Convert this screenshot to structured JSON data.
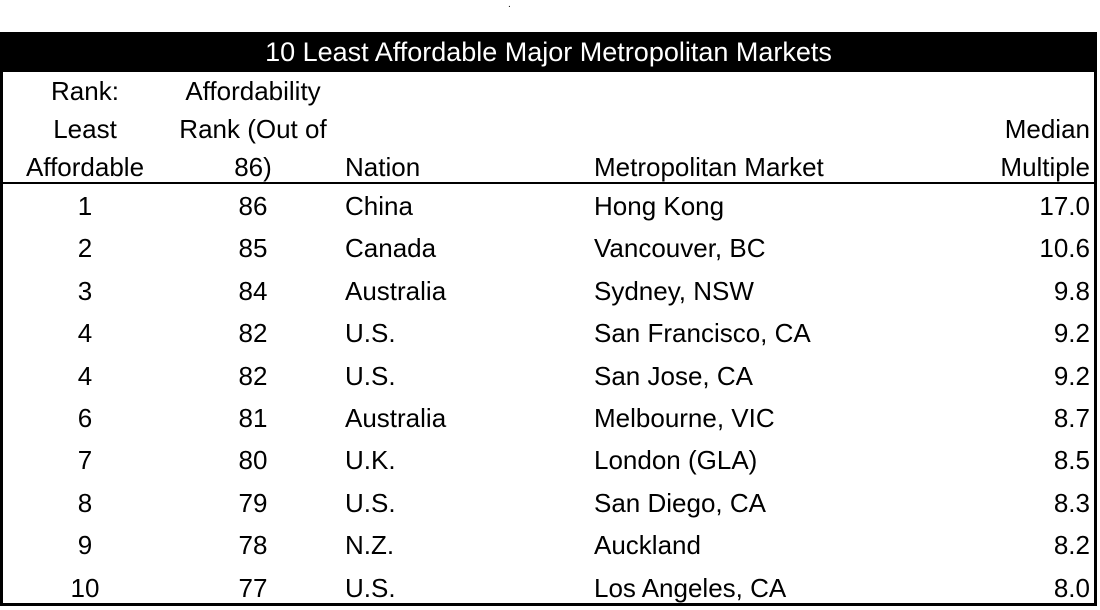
{
  "title": "10 Least Affordable Major Metropolitan Markets",
  "top_mark": ".",
  "headers": {
    "rank": [
      "Rank:",
      "Least",
      "Affordable"
    ],
    "affordability_rank": [
      "Affordability",
      "Rank (Out of",
      "86)"
    ],
    "nation": "Nation",
    "market": "Metropolitan Market",
    "median_multiple": [
      "Median",
      "Multiple"
    ]
  },
  "rows": [
    {
      "rank": "1",
      "afford": "86",
      "nation": "China",
      "market": "Hong Kong",
      "multiple": "17.0"
    },
    {
      "rank": "2",
      "afford": "85",
      "nation": "Canada",
      "market": "Vancouver, BC",
      "multiple": "10.6"
    },
    {
      "rank": "3",
      "afford": "84",
      "nation": "Australia",
      "market": "Sydney, NSW",
      "multiple": "9.8"
    },
    {
      "rank": "4",
      "afford": "82",
      "nation": "U.S.",
      "market": "San Francisco, CA",
      "multiple": "9.2"
    },
    {
      "rank": "4",
      "afford": "82",
      "nation": "U.S.",
      "market": "San Jose, CA",
      "multiple": "9.2"
    },
    {
      "rank": "6",
      "afford": "81",
      "nation": "Australia",
      "market": "Melbourne, VIC",
      "multiple": "8.7"
    },
    {
      "rank": "7",
      "afford": "80",
      "nation": "U.K.",
      "market": "London (GLA)",
      "multiple": "8.5"
    },
    {
      "rank": "8",
      "afford": "79",
      "nation": "U.S.",
      "market": "San Diego, CA",
      "multiple": "8.3"
    },
    {
      "rank": "9",
      "afford": "78",
      "nation": "N.Z.",
      "market": "Auckland",
      "multiple": "8.2"
    },
    {
      "rank": "10",
      "afford": "77",
      "nation": "U.S.",
      "market": "Los Angeles, CA",
      "multiple": "8.0"
    }
  ]
}
